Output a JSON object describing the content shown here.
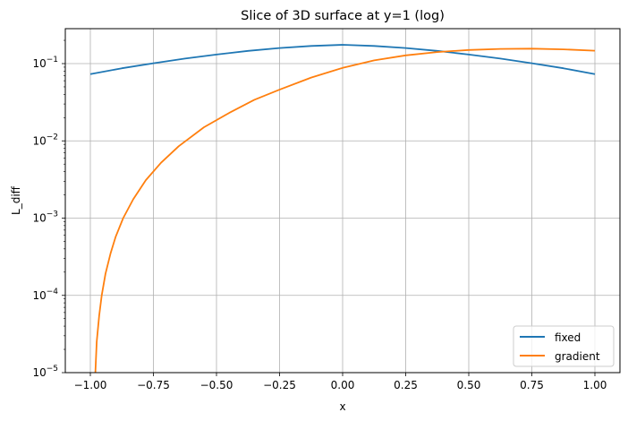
{
  "chart_data": {
    "type": "line",
    "title": "Slice of 3D surface at y=1 (log)",
    "xlabel": "x",
    "ylabel": "L_diff",
    "yscale": "log",
    "xlim": [
      -1.1,
      1.1
    ],
    "ylim": [
      1e-05,
      0.35
    ],
    "grid": true,
    "legend_position": "lower right",
    "x_ticks": [
      -1.0,
      -0.75,
      -0.5,
      -0.25,
      0.0,
      0.25,
      0.5,
      0.75,
      1.0
    ],
    "x_tick_labels": [
      "−1.00",
      "−0.75",
      "−0.50",
      "−0.25",
      "0.00",
      "0.25",
      "0.50",
      "0.75",
      "1.00"
    ],
    "y_ticks": [
      1e-05,
      0.0001,
      0.001,
      0.01,
      0.1
    ],
    "y_tick_labels": [
      {
        "base": "10",
        "exp": "−5"
      },
      {
        "base": "10",
        "exp": "−4"
      },
      {
        "base": "10",
        "exp": "−3"
      },
      {
        "base": "10",
        "exp": "−2"
      },
      {
        "base": "10",
        "exp": "−1"
      }
    ],
    "series": [
      {
        "name": "fixed",
        "color": "#1f77b4",
        "x": [
          -1.0,
          -0.875,
          -0.75,
          -0.625,
          -0.5,
          -0.375,
          -0.25,
          -0.125,
          0.0,
          0.125,
          0.25,
          0.375,
          0.5,
          0.625,
          0.75,
          0.875,
          1.0
        ],
        "y": [
          0.073,
          0.087,
          0.101,
          0.116,
          0.131,
          0.146,
          0.159,
          0.169,
          0.175,
          0.169,
          0.159,
          0.146,
          0.131,
          0.116,
          0.101,
          0.087,
          0.073
        ]
      },
      {
        "name": "gradient",
        "color": "#ff7f0e",
        "x": [
          -0.98,
          -0.975,
          -0.965,
          -0.955,
          -0.94,
          -0.92,
          -0.9,
          -0.87,
          -0.83,
          -0.78,
          -0.72,
          -0.65,
          -0.55,
          -0.45,
          -0.35,
          -0.25,
          -0.125,
          0.0,
          0.125,
          0.25,
          0.375,
          0.5,
          0.625,
          0.75,
          0.875,
          1.0
        ],
        "y": [
          1e-05,
          2.5e-05,
          5.5e-05,
          0.0001,
          0.00019,
          0.00035,
          0.00057,
          0.001,
          0.00175,
          0.0031,
          0.0052,
          0.0085,
          0.015,
          0.023,
          0.034,
          0.046,
          0.066,
          0.088,
          0.11,
          0.128,
          0.141,
          0.15,
          0.155,
          0.156,
          0.153,
          0.147
        ]
      }
    ]
  },
  "legend": {
    "items": [
      {
        "label": "fixed",
        "color": "#1f77b4"
      },
      {
        "label": "gradient",
        "color": "#ff7f0e"
      }
    ]
  }
}
